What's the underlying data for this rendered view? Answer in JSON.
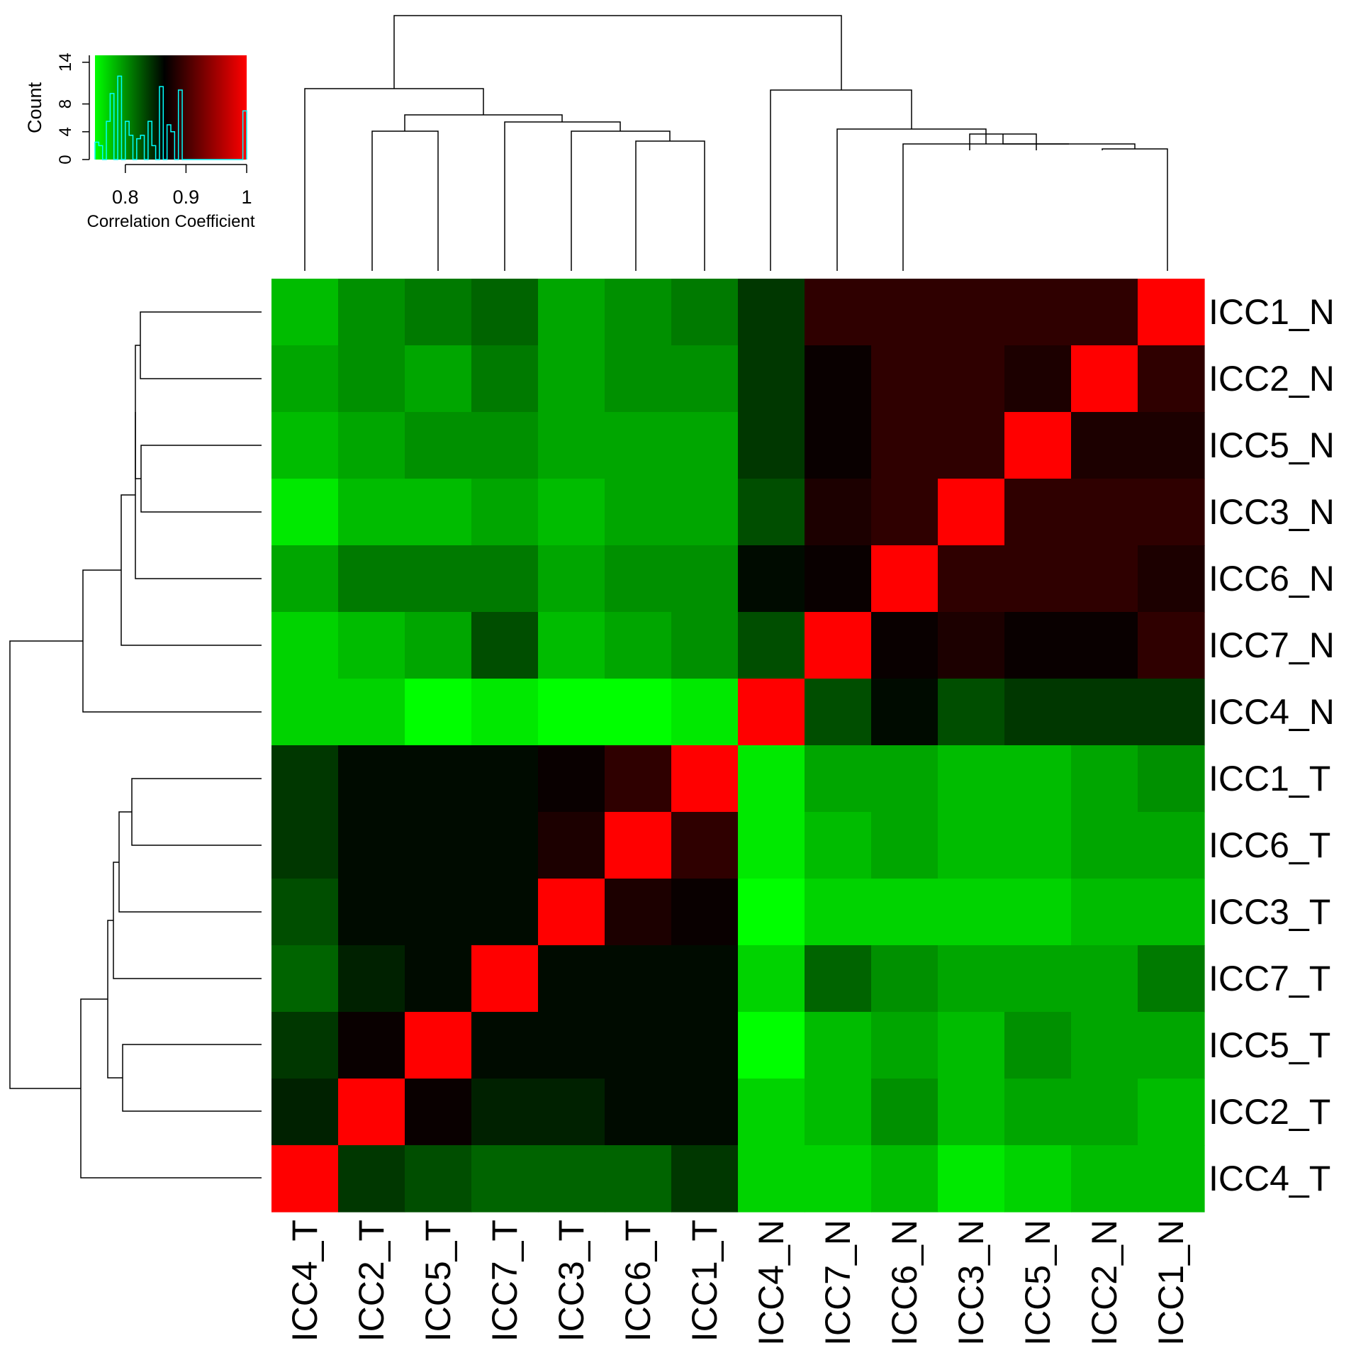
{
  "chart_data": {
    "type": "heatmap",
    "columns": [
      "ICC4_T",
      "ICC2_T",
      "ICC5_T",
      "ICC7_T",
      "ICC3_T",
      "ICC6_T",
      "ICC1_T",
      "ICC4_N",
      "ICC7_N",
      "ICC6_N",
      "ICC3_N",
      "ICC5_N",
      "ICC2_N",
      "ICC1_N"
    ],
    "rows": [
      "ICC1_N",
      "ICC2_N",
      "ICC5_N",
      "ICC3_N",
      "ICC6_N",
      "ICC7_N",
      "ICC4_N",
      "ICC1_T",
      "ICC6_T",
      "ICC3_T",
      "ICC7_T",
      "ICC5_T",
      "ICC2_T",
      "ICC4_T"
    ],
    "values": [
      [
        0.78,
        0.8,
        0.81,
        0.82,
        0.79,
        0.8,
        0.81,
        0.84,
        0.89,
        0.89,
        0.89,
        0.89,
        0.89,
        1.0
      ],
      [
        0.79,
        0.8,
        0.79,
        0.81,
        0.79,
        0.8,
        0.8,
        0.84,
        0.87,
        0.89,
        0.89,
        0.88,
        1.0,
        0.89
      ],
      [
        0.78,
        0.79,
        0.8,
        0.8,
        0.79,
        0.79,
        0.79,
        0.84,
        0.87,
        0.89,
        0.89,
        1.0,
        0.88,
        0.88
      ],
      [
        0.76,
        0.78,
        0.78,
        0.79,
        0.78,
        0.79,
        0.79,
        0.83,
        0.88,
        0.89,
        1.0,
        0.89,
        0.89,
        0.89
      ],
      [
        0.79,
        0.81,
        0.81,
        0.81,
        0.79,
        0.8,
        0.8,
        0.86,
        0.87,
        1.0,
        0.89,
        0.89,
        0.89,
        0.88
      ],
      [
        0.77,
        0.78,
        0.79,
        0.83,
        0.78,
        0.79,
        0.8,
        0.83,
        1.0,
        0.87,
        0.88,
        0.87,
        0.87,
        0.89
      ],
      [
        0.77,
        0.77,
        0.75,
        0.76,
        0.74,
        0.75,
        0.76,
        1.0,
        0.83,
        0.86,
        0.83,
        0.84,
        0.84,
        0.84
      ],
      [
        0.84,
        0.86,
        0.86,
        0.86,
        0.87,
        0.89,
        1.0,
        0.76,
        0.79,
        0.79,
        0.78,
        0.78,
        0.79,
        0.8
      ],
      [
        0.84,
        0.86,
        0.86,
        0.86,
        0.88,
        1.0,
        0.89,
        0.76,
        0.78,
        0.79,
        0.78,
        0.78,
        0.79,
        0.79
      ],
      [
        0.83,
        0.86,
        0.86,
        0.86,
        1.0,
        0.88,
        0.87,
        0.74,
        0.77,
        0.77,
        0.77,
        0.77,
        0.78,
        0.78
      ],
      [
        0.82,
        0.85,
        0.86,
        1.0,
        0.86,
        0.86,
        0.86,
        0.77,
        0.82,
        0.8,
        0.79,
        0.79,
        0.79,
        0.81
      ],
      [
        0.84,
        0.87,
        1.0,
        0.86,
        0.86,
        0.86,
        0.86,
        0.75,
        0.78,
        0.79,
        0.78,
        0.8,
        0.79,
        0.79
      ],
      [
        0.85,
        1.0,
        0.87,
        0.85,
        0.85,
        0.86,
        0.86,
        0.77,
        0.78,
        0.8,
        0.78,
        0.79,
        0.79,
        0.78
      ],
      [
        1.0,
        0.84,
        0.83,
        0.82,
        0.82,
        0.82,
        0.84,
        0.77,
        0.77,
        0.78,
        0.76,
        0.77,
        0.78,
        0.78
      ]
    ],
    "color_scale": {
      "min": 0.75,
      "mid": 0.865,
      "max": 1.0,
      "low_color": "#00ff00",
      "mid_color": "#000000",
      "high_color": "#ff0000"
    },
    "color_key": {
      "xlabel": "Correlation Coefficient",
      "ylabel": "Count",
      "xticks": [
        "0.8",
        "0.9",
        "1"
      ],
      "xtick_values": [
        0.8,
        0.9,
        1.0
      ],
      "yticks": [
        "0",
        "4",
        "8",
        "14"
      ],
      "ytick_values": [
        0,
        4,
        8,
        14
      ],
      "ylim": [
        0,
        15
      ],
      "histogram_color": "#00ffff"
    }
  }
}
